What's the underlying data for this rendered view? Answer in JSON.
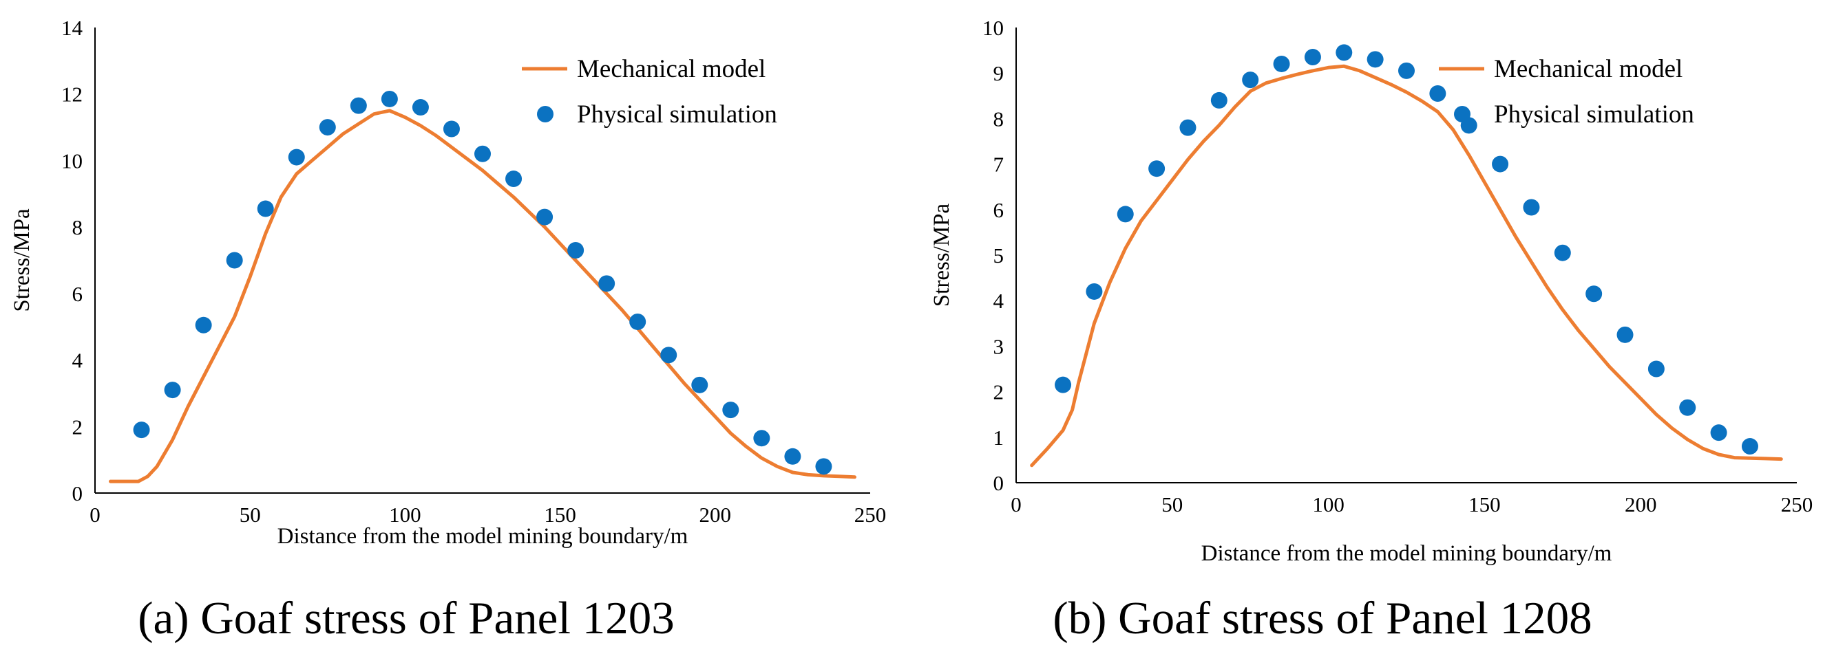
{
  "colors": {
    "model_line": "#ED7D31",
    "simulation_points": "#0B72C1"
  },
  "chart_data": [
    {
      "type": "line",
      "caption": "(a) Goaf stress of Panel 1203",
      "xlabel": "Distance from the model mining boundary/m",
      "ylabel": "Stress/MPa",
      "xlim": [
        0,
        250
      ],
      "ylim": [
        0,
        14
      ],
      "xticks": [
        0,
        50,
        100,
        150,
        200,
        250
      ],
      "yticks": [
        0,
        2,
        4,
        6,
        8,
        10,
        12,
        14
      ],
      "legend_position": "top-right",
      "series": [
        {
          "name": "Mechanical model",
          "kind": "line",
          "x": [
            5,
            10,
            14,
            17,
            20,
            25,
            30,
            35,
            40,
            45,
            50,
            55,
            60,
            65,
            70,
            75,
            80,
            85,
            90,
            95,
            100,
            105,
            110,
            115,
            120,
            125,
            130,
            135,
            140,
            145,
            150,
            155,
            160,
            165,
            170,
            175,
            180,
            185,
            190,
            195,
            200,
            205,
            210,
            215,
            220,
            225,
            230,
            235,
            240,
            245
          ],
          "y": [
            0.35,
            0.35,
            0.35,
            0.5,
            0.8,
            1.6,
            2.6,
            3.5,
            4.4,
            5.3,
            6.5,
            7.8,
            8.9,
            9.6,
            10.0,
            10.4,
            10.8,
            11.1,
            11.4,
            11.5,
            11.3,
            11.05,
            10.75,
            10.4,
            10.05,
            9.7,
            9.3,
            8.9,
            8.45,
            8.0,
            7.5,
            7.0,
            6.5,
            6.0,
            5.5,
            4.95,
            4.4,
            3.85,
            3.3,
            2.8,
            2.3,
            1.8,
            1.4,
            1.05,
            0.8,
            0.62,
            0.55,
            0.52,
            0.5,
            0.48
          ]
        },
        {
          "name": "Physical simulation",
          "kind": "scatter",
          "x": [
            15,
            25,
            35,
            45,
            55,
            65,
            75,
            85,
            95,
            105,
            115,
            125,
            135,
            145,
            155,
            165,
            175,
            185,
            195,
            205,
            215,
            225,
            235
          ],
          "y": [
            1.9,
            3.1,
            5.05,
            7.0,
            8.55,
            10.1,
            11.0,
            11.65,
            11.85,
            11.6,
            10.95,
            10.2,
            9.45,
            8.3,
            7.3,
            6.3,
            5.15,
            4.15,
            3.25,
            2.5,
            1.65,
            1.1,
            0.8
          ]
        }
      ]
    },
    {
      "type": "line",
      "caption": "(b) Goaf stress of Panel 1208",
      "xlabel": "Distance from the model mining boundary/m",
      "ylabel": "Stress/MPa",
      "xlim": [
        0,
        250
      ],
      "ylim": [
        0,
        10
      ],
      "xticks": [
        0,
        50,
        100,
        150,
        200,
        250
      ],
      "yticks": [
        0,
        1,
        2,
        3,
        4,
        5,
        6,
        7,
        8,
        9,
        10
      ],
      "legend_position": "top-right",
      "series": [
        {
          "name": "Mechanical model",
          "kind": "line",
          "x": [
            5,
            10,
            15,
            18,
            20,
            25,
            30,
            35,
            40,
            45,
            50,
            55,
            60,
            65,
            70,
            75,
            80,
            85,
            90,
            95,
            100,
            105,
            110,
            115,
            120,
            125,
            130,
            135,
            140,
            145,
            150,
            155,
            160,
            165,
            170,
            175,
            180,
            185,
            190,
            195,
            200,
            205,
            210,
            215,
            220,
            225,
            230,
            235,
            240,
            245
          ],
          "y": [
            0.38,
            0.75,
            1.15,
            1.6,
            2.2,
            3.5,
            4.4,
            5.15,
            5.75,
            6.2,
            6.65,
            7.1,
            7.5,
            7.85,
            8.25,
            8.6,
            8.78,
            8.88,
            8.97,
            9.05,
            9.12,
            9.15,
            9.05,
            8.9,
            8.75,
            8.58,
            8.38,
            8.15,
            7.75,
            7.2,
            6.6,
            6.0,
            5.4,
            4.85,
            4.3,
            3.8,
            3.35,
            2.95,
            2.55,
            2.2,
            1.85,
            1.5,
            1.2,
            0.95,
            0.75,
            0.62,
            0.55,
            0.54,
            0.53,
            0.52
          ]
        },
        {
          "name": "Physical simulation",
          "kind": "scatter",
          "x": [
            15,
            25,
            35,
            45,
            55,
            65,
            75,
            85,
            95,
            105,
            115,
            125,
            135,
            145,
            155,
            165,
            175,
            185,
            195,
            205,
            215,
            225,
            235
          ],
          "y": [
            2.15,
            4.2,
            5.9,
            6.9,
            7.8,
            8.4,
            8.85,
            9.2,
            9.35,
            9.45,
            9.3,
            9.05,
            8.55,
            7.85,
            7.0,
            6.05,
            5.05,
            4.15,
            3.25,
            2.5,
            1.65,
            1.1,
            0.8
          ]
        }
      ]
    }
  ]
}
